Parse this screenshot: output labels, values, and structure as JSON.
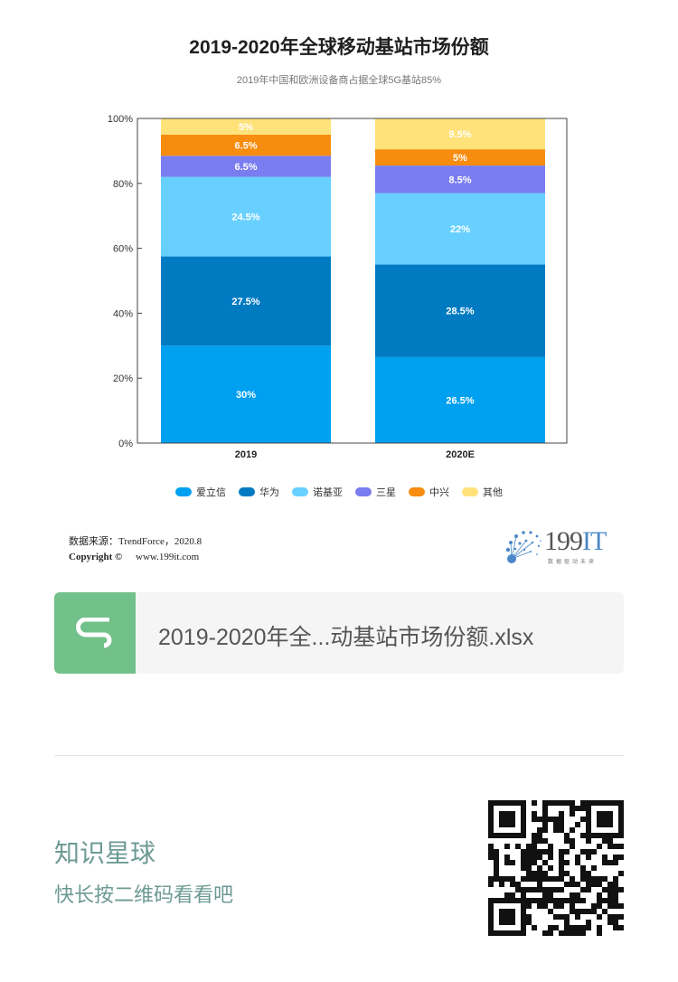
{
  "chart_data": {
    "type": "bar",
    "stacked": true,
    "title": "2019-2020年全球移动基站市场份额",
    "subtitle": "2019年中国和欧洲设备商占据全球5G基站85%",
    "categories": [
      "2019",
      "2020E"
    ],
    "series": [
      {
        "name": "爱立信",
        "values": [
          30,
          26.5
        ],
        "labels": [
          "30%",
          "26.5%"
        ],
        "color": "#00a0f0"
      },
      {
        "name": "华为",
        "values": [
          27.5,
          28.5
        ],
        "labels": [
          "27.5%",
          "28.5%"
        ],
        "color": "#007bc2"
      },
      {
        "name": "诺基亚",
        "values": [
          24.5,
          22
        ],
        "labels": [
          "24.5%",
          "22%"
        ],
        "color": "#68d0ff"
      },
      {
        "name": "三星",
        "values": [
          6.5,
          8.5
        ],
        "labels": [
          "6.5%",
          "8.5%"
        ],
        "color": "#7a7df0"
      },
      {
        "name": "中兴",
        "values": [
          6.5,
          5
        ],
        "labels": [
          "6.5%",
          "5%"
        ],
        "color": "#f88c0e"
      },
      {
        "name": "其他",
        "values": [
          5,
          9.5
        ],
        "labels": [
          "5%",
          "9.5%"
        ],
        "color": "#ffe27a"
      }
    ],
    "y_ticks": [
      "0%",
      "20%",
      "40%",
      "60%",
      "80%",
      "100%"
    ],
    "ylim": [
      0,
      100
    ],
    "grid": false,
    "legend": "bottom"
  },
  "source": "数据来源：TrendForce，2020.8",
  "copyright": {
    "label": "Copyright ©",
    "url": "www.199it.com"
  },
  "logo": {
    "main": "199",
    "accent": "IT",
    "sub": "数据驱动未来"
  },
  "file": {
    "icon": "spreadsheet-s-icon",
    "name": "2019-2020年全...动基站市场份额.xlsx"
  },
  "planet": {
    "title": "知识星球",
    "subtitle": "快长按二维码看看吧"
  },
  "qr": {
    "icon": "qr-code-icon"
  }
}
